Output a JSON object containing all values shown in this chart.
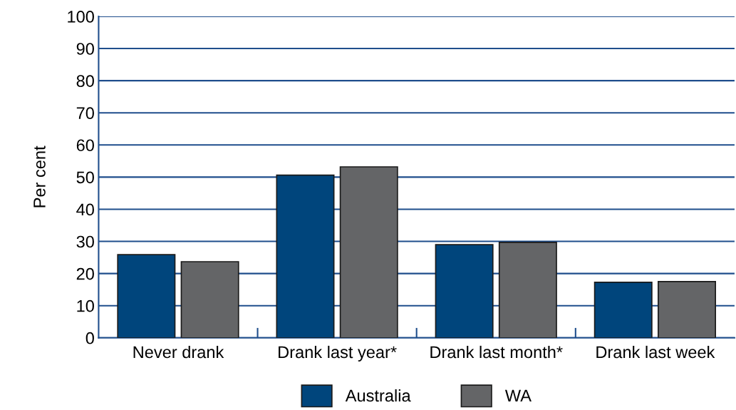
{
  "chart_data": {
    "type": "bar",
    "ylabel": "Per cent",
    "categories": [
      "Never drank",
      "Drank last year*",
      "Drank last month*",
      "Drank last week"
    ],
    "series": [
      {
        "name": "Australia",
        "color": "#00457c",
        "values": [
          25.9,
          50.6,
          29.0,
          17.3
        ]
      },
      {
        "name": "WA",
        "color": "#646567",
        "values": [
          23.7,
          53.2,
          29.7,
          17.5
        ]
      }
    ],
    "ylim": [
      0,
      100
    ],
    "yticks": [
      0,
      10,
      20,
      30,
      40,
      50,
      60,
      70,
      80,
      90,
      100
    ],
    "grid": "y",
    "legend": "bottom"
  }
}
